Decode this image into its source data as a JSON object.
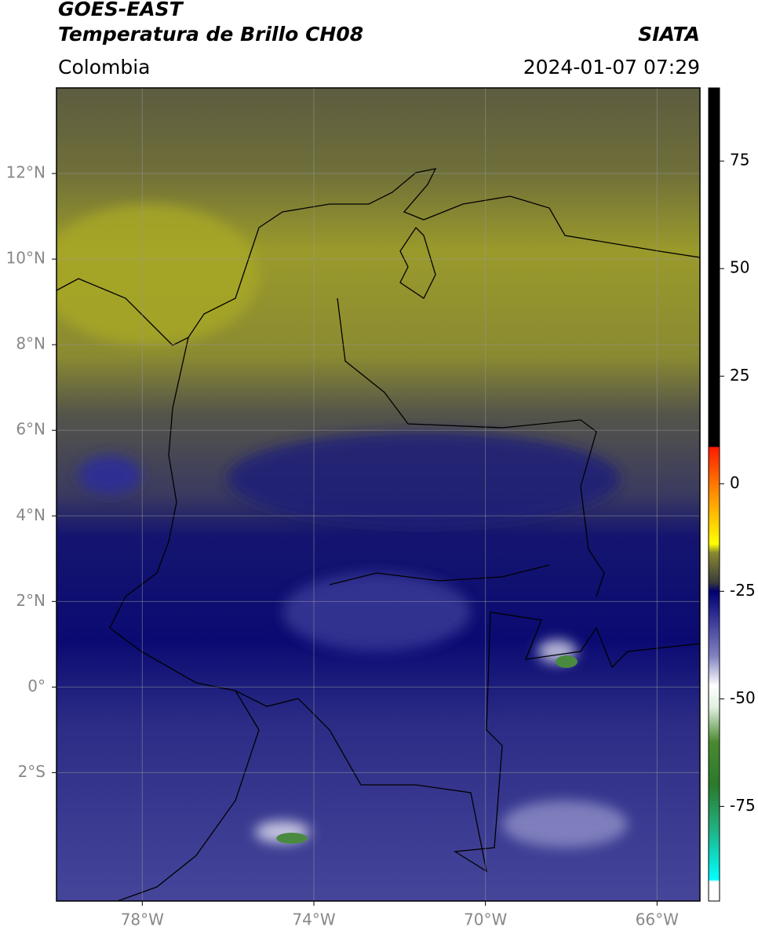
{
  "map": {
    "title": "GOES-EAST",
    "subtitle": "Temperatura de Brillo CH08",
    "source": "SIATA",
    "region": "Colombia",
    "datetime": "2024-01-07 07:29",
    "xlim": [
      -80,
      -65
    ],
    "ylim": [
      -5,
      14
    ],
    "xticks": [
      {
        "value": -78,
        "label": "78°W"
      },
      {
        "value": -74,
        "label": "74°W"
      },
      {
        "value": -70,
        "label": "70°W"
      },
      {
        "value": -66,
        "label": "66°W"
      }
    ],
    "yticks": [
      {
        "value": 12,
        "label": "12°N"
      },
      {
        "value": 10,
        "label": "10°N"
      },
      {
        "value": 8,
        "label": "8°N"
      },
      {
        "value": 6,
        "label": "6°N"
      },
      {
        "value": 4,
        "label": "4°N"
      },
      {
        "value": 2,
        "label": "2°N"
      },
      {
        "value": 0,
        "label": "0°"
      },
      {
        "value": -2,
        "label": "2°S"
      }
    ],
    "grid": true,
    "colorbar": {
      "lim": [
        -97,
        92
      ],
      "ticks": [
        75,
        50,
        25,
        0,
        -25,
        -50,
        -75
      ],
      "stops": [
        {
          "value": 92,
          "color": "#000000"
        },
        {
          "value": 8.6,
          "color": "#000000"
        },
        {
          "value": 8.5,
          "color": "#ff1a00"
        },
        {
          "value": -2,
          "color": "#ff8c00"
        },
        {
          "value": -14,
          "color": "#ffff00"
        },
        {
          "value": -16,
          "color": "#8a8a30"
        },
        {
          "value": -23,
          "color": "#3a3a3a"
        },
        {
          "value": -25,
          "color": "#000070"
        },
        {
          "value": -30,
          "color": "#2a2a90"
        },
        {
          "value": -40,
          "color": "#8080c0"
        },
        {
          "value": -47,
          "color": "#ffffff"
        },
        {
          "value": -52,
          "color": "#e0f0e0"
        },
        {
          "value": -60,
          "color": "#4a8a30"
        },
        {
          "value": -70,
          "color": "#2a7a2a"
        },
        {
          "value": -80,
          "color": "#20b080"
        },
        {
          "value": -92,
          "color": "#00ffff"
        },
        {
          "value": -92.5,
          "color": "#ffffff"
        },
        {
          "value": -97,
          "color": "#ffffff"
        }
      ]
    }
  }
}
